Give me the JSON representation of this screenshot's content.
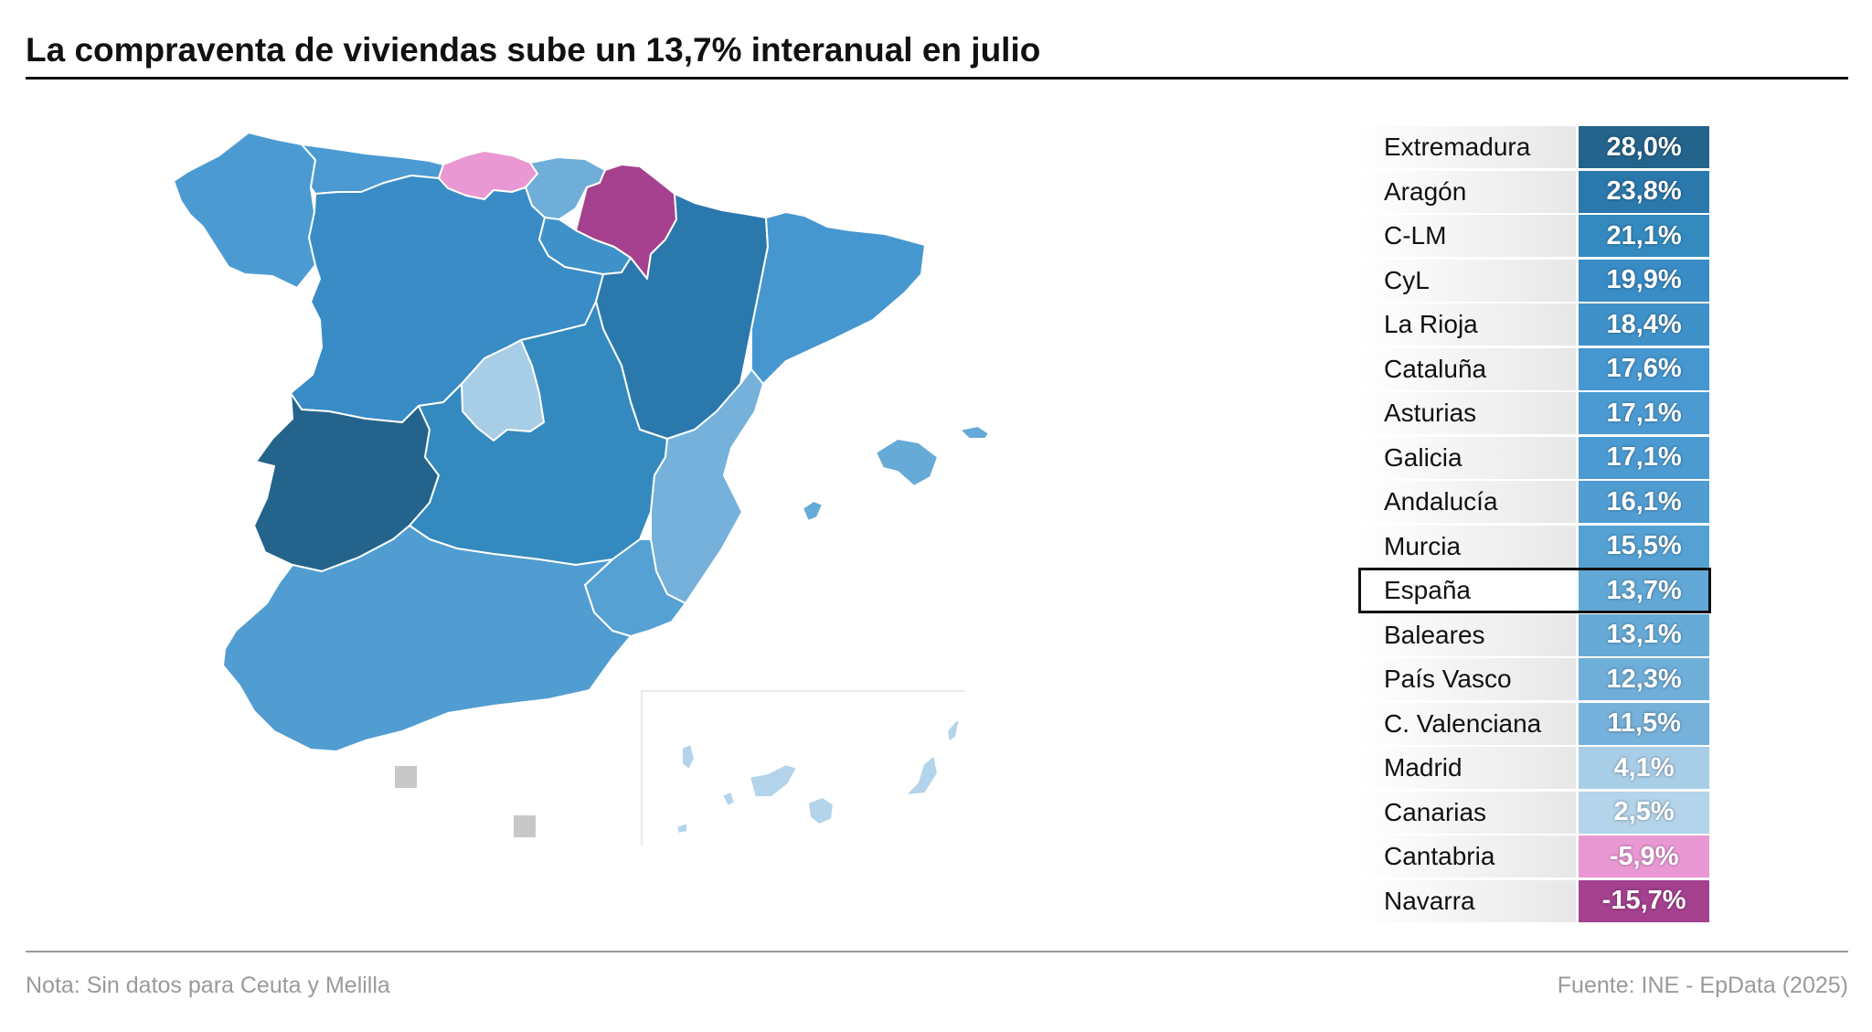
{
  "title": "La compraventa de viviendas sube un 13,7% interanual en julio",
  "note": "Nota: Sin datos para Ceuta y Melilla",
  "source": "Fuente: INE - EpData (2025)",
  "colors": {
    "Extremadura": "#24648c",
    "Aragón": "#2b78ad",
    "C-LM": "#348abe",
    "CyL": "#398cc6",
    "La Rioja": "#3f92c9",
    "Cataluña": "#4697cf",
    "Asturias": "#4b9bd2",
    "Galicia": "#4b9bd2",
    "Andalucía": "#519dd2",
    "Murcia": "#55a1d4",
    "España": "#62a8d6",
    "Baleares": "#66aad7",
    "País Vasco": "#6faed9",
    "C. Valenciana": "#75b1da",
    "Madrid": "#a8cde7",
    "Canarias": "#b3d4ea",
    "Cantabria": "#e998d3",
    "Navarra": "#a5418f",
    "no-data": "#c8c8c8"
  },
  "regions": [
    {
      "name": "Extremadura",
      "value": 28.0,
      "label": "28,0%"
    },
    {
      "name": "Aragón",
      "value": 23.8,
      "label": "23,8%"
    },
    {
      "name": "C-LM",
      "value": 21.1,
      "label": "21,1%"
    },
    {
      "name": "CyL",
      "value": 19.9,
      "label": "19,9%"
    },
    {
      "name": "La Rioja",
      "value": 18.4,
      "label": "18,4%"
    },
    {
      "name": "Cataluña",
      "value": 17.6,
      "label": "17,6%"
    },
    {
      "name": "Asturias",
      "value": 17.1,
      "label": "17,1%"
    },
    {
      "name": "Galicia",
      "value": 17.1,
      "label": "17,1%"
    },
    {
      "name": "Andalucía",
      "value": 16.1,
      "label": "16,1%"
    },
    {
      "name": "Murcia",
      "value": 15.5,
      "label": "15,5%"
    },
    {
      "name": "España",
      "value": 13.7,
      "label": "13,7%",
      "highlight": true
    },
    {
      "name": "Baleares",
      "value": 13.1,
      "label": "13,1%"
    },
    {
      "name": "País Vasco",
      "value": 12.3,
      "label": "12,3%"
    },
    {
      "name": "C. Valenciana",
      "value": 11.5,
      "label": "11,5%"
    },
    {
      "name": "Madrid",
      "value": 4.1,
      "label": "4,1%"
    },
    {
      "name": "Canarias",
      "value": 2.5,
      "label": "2,5%"
    },
    {
      "name": "Cantabria",
      "value": -5.9,
      "label": "-5,9%"
    },
    {
      "name": "Navarra",
      "value": -15.7,
      "label": "-15,7%"
    }
  ]
}
